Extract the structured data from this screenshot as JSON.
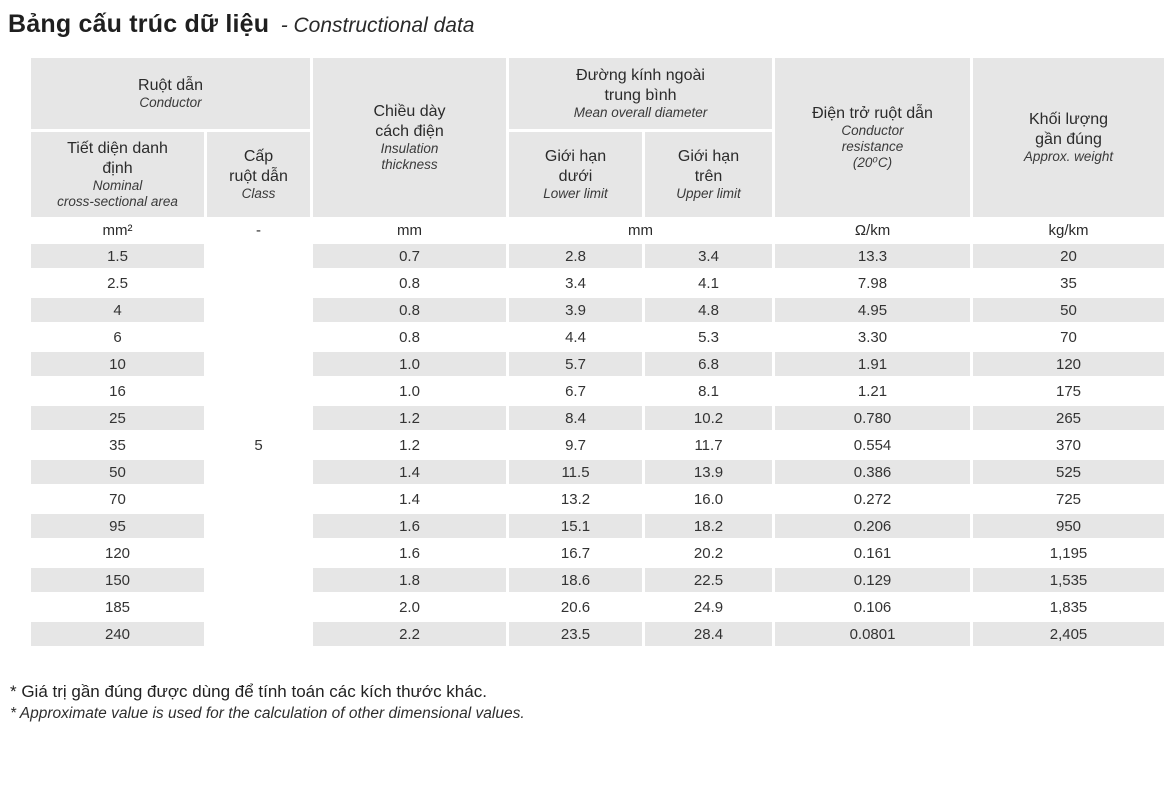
{
  "title": {
    "vi": "Bảng cấu trúc dữ liệu",
    "en": "- Constructional data"
  },
  "table": {
    "headers": {
      "conductor": {
        "vi": "Ruột dẫn",
        "en": "Conductor"
      },
      "nominal_area": {
        "vi": "Tiết diện danh\nđịnh",
        "en": "Nominal\ncross-sectional area"
      },
      "class": {
        "vi": "Cấp\nruột dẫn",
        "en": "Class"
      },
      "insulation": {
        "vi": "Chiều dày\ncách điện",
        "en": "Insulation\nthickness"
      },
      "diameter": {
        "vi": "Đường kính ngoài\ntrung bình",
        "en": "Mean overall diameter"
      },
      "lower_limit": {
        "vi": "Giới hạn\ndưới",
        "en": "Lower limit"
      },
      "upper_limit": {
        "vi": "Giới hạn\ntrên",
        "en": "Upper limit"
      },
      "resistance": {
        "vi": "Điện trở ruột dẫn",
        "en": "Conductor\nresistance\n(20⁰C)"
      },
      "weight": {
        "vi": "Khối lượng\ngần đúng",
        "en": "Approx. weight"
      }
    },
    "units": {
      "area": "mm²",
      "class": "-",
      "insulation": "mm",
      "diameter": "mm",
      "resistance": "Ω/km",
      "weight": "kg/km"
    },
    "class_value": "5",
    "rows": [
      {
        "area": "1.5",
        "thickness": "0.7",
        "lower": "2.8",
        "upper": "3.4",
        "resistance": "13.3",
        "weight": "20"
      },
      {
        "area": "2.5",
        "thickness": "0.8",
        "lower": "3.4",
        "upper": "4.1",
        "resistance": "7.98",
        "weight": "35"
      },
      {
        "area": "4",
        "thickness": "0.8",
        "lower": "3.9",
        "upper": "4.8",
        "resistance": "4.95",
        "weight": "50"
      },
      {
        "area": "6",
        "thickness": "0.8",
        "lower": "4.4",
        "upper": "5.3",
        "resistance": "3.30",
        "weight": "70"
      },
      {
        "area": "10",
        "thickness": "1.0",
        "lower": "5.7",
        "upper": "6.8",
        "resistance": "1.91",
        "weight": "120"
      },
      {
        "area": "16",
        "thickness": "1.0",
        "lower": "6.7",
        "upper": "8.1",
        "resistance": "1.21",
        "weight": "175"
      },
      {
        "area": "25",
        "thickness": "1.2",
        "lower": "8.4",
        "upper": "10.2",
        "resistance": "0.780",
        "weight": "265"
      },
      {
        "area": "35",
        "thickness": "1.2",
        "lower": "9.7",
        "upper": "11.7",
        "resistance": "0.554",
        "weight": "370"
      },
      {
        "area": "50",
        "thickness": "1.4",
        "lower": "11.5",
        "upper": "13.9",
        "resistance": "0.386",
        "weight": "525"
      },
      {
        "area": "70",
        "thickness": "1.4",
        "lower": "13.2",
        "upper": "16.0",
        "resistance": "0.272",
        "weight": "725"
      },
      {
        "area": "95",
        "thickness": "1.6",
        "lower": "15.1",
        "upper": "18.2",
        "resistance": "0.206",
        "weight": "950"
      },
      {
        "area": "120",
        "thickness": "1.6",
        "lower": "16.7",
        "upper": "20.2",
        "resistance": "0.161",
        "weight": "1,195"
      },
      {
        "area": "150",
        "thickness": "1.8",
        "lower": "18.6",
        "upper": "22.5",
        "resistance": "0.129",
        "weight": "1,535"
      },
      {
        "area": "185",
        "thickness": "2.0",
        "lower": "20.6",
        "upper": "24.9",
        "resistance": "0.106",
        "weight": "1,835"
      },
      {
        "area": "240",
        "thickness": "2.2",
        "lower": "23.5",
        "upper": "28.4",
        "resistance": "0.0801",
        "weight": "2,405"
      }
    ]
  },
  "footnotes": {
    "vi": "* Giá trị gần đúng được dùng để tính toán các kích thước khác.",
    "en": "* Approximate value is used for the calculation of other dimensional values."
  },
  "colors": {
    "cell_gray": "#e6e6e6",
    "text": "#2e2e2e"
  }
}
